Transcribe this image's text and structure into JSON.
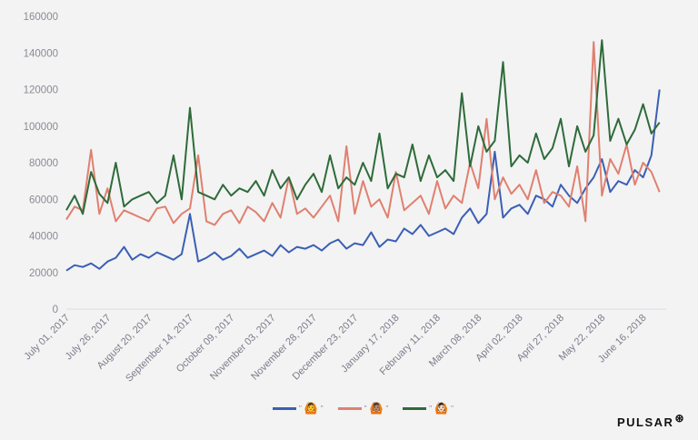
{
  "chart_data": {
    "type": "line",
    "title": "",
    "xlabel": "",
    "ylabel": "",
    "ylim": [
      0,
      160000
    ],
    "yticks": [
      0,
      20000,
      40000,
      60000,
      80000,
      100000,
      120000,
      140000,
      160000
    ],
    "ytick_labels": [
      "0",
      "20000",
      "40000",
      "60000",
      "80000",
      "100000",
      "120000",
      "140000",
      "160000"
    ],
    "xtick_labels": [
      "July 01, 2017",
      "July 26, 2017",
      "August 20, 2017",
      "September 14, 2017",
      "October 09, 2017",
      "November 03, 2017",
      "November 28, 2017",
      "December 23, 2017",
      "January 17, 2018",
      "February 11, 2018",
      "March 08, 2018",
      "April 02, 2018",
      "April 27, 2018",
      "May 22, 2018",
      "June 16, 2018"
    ],
    "xtick_days": [
      0,
      25,
      50,
      75,
      100,
      125,
      150,
      175,
      200,
      225,
      250,
      275,
      300,
      325,
      350
    ],
    "x_day_range": [
      0,
      364
    ],
    "x_step_days": 5,
    "grid": false,
    "legend_position": "bottom-center",
    "series": [
      {
        "name": "\"🙆\"",
        "color": "#3b5fb5",
        "values": [
          21000,
          24000,
          23000,
          25000,
          22000,
          26000,
          28000,
          34000,
          27000,
          30000,
          28000,
          31000,
          29000,
          27000,
          30000,
          52000,
          26000,
          28000,
          31000,
          27000,
          29000,
          33000,
          28000,
          30000,
          32000,
          29000,
          35000,
          31000,
          34000,
          33000,
          35000,
          32000,
          36000,
          38000,
          33000,
          36000,
          35000,
          42000,
          34000,
          38000,
          37000,
          44000,
          41000,
          46000,
          40000,
          42000,
          44000,
          41000,
          50000,
          55000,
          47000,
          52000,
          86000,
          50000,
          55000,
          57000,
          52000,
          62000,
          60000,
          56000,
          68000,
          62000,
          58000,
          66000,
          72000,
          82000,
          64000,
          70000,
          68000,
          76000,
          72000,
          84000,
          120000
        ]
      },
      {
        "name": "\"🙆🏽\"",
        "color": "#e08070",
        "values": [
          49000,
          56000,
          54000,
          87000,
          52000,
          66000,
          48000,
          54000,
          52000,
          50000,
          48000,
          55000,
          56000,
          47000,
          52000,
          55000,
          84000,
          48000,
          46000,
          52000,
          54000,
          47000,
          56000,
          53000,
          48000,
          58000,
          50000,
          72000,
          52000,
          55000,
          50000,
          56000,
          62000,
          48000,
          89000,
          52000,
          70000,
          56000,
          60000,
          50000,
          75000,
          54000,
          58000,
          62000,
          52000,
          70000,
          55000,
          62000,
          58000,
          80000,
          66000,
          104000,
          60000,
          72000,
          63000,
          68000,
          60000,
          76000,
          58000,
          64000,
          62000,
          56000,
          78000,
          48000,
          146000,
          62000,
          82000,
          74000,
          90000,
          68000,
          80000,
          75000,
          64000
        ]
      },
      {
        "name": "\"🙆🏻\"",
        "color": "#2e6b3a",
        "values": [
          54000,
          62000,
          52000,
          75000,
          63000,
          58000,
          80000,
          56000,
          60000,
          62000,
          64000,
          58000,
          62000,
          84000,
          60000,
          110000,
          64000,
          62000,
          60000,
          68000,
          62000,
          66000,
          64000,
          70000,
          62000,
          76000,
          66000,
          72000,
          60000,
          68000,
          74000,
          64000,
          84000,
          66000,
          72000,
          68000,
          80000,
          70000,
          96000,
          66000,
          74000,
          72000,
          90000,
          70000,
          84000,
          72000,
          76000,
          70000,
          118000,
          78000,
          100000,
          86000,
          92000,
          135000,
          78000,
          84000,
          80000,
          96000,
          82000,
          88000,
          104000,
          78000,
          100000,
          86000,
          95000,
          147000,
          92000,
          104000,
          90000,
          98000,
          112000,
          96000,
          102000
        ]
      }
    ]
  },
  "legend": {
    "items": [
      {
        "quote_open": "\"",
        "emoji": "🙆",
        "quote_close": "\""
      },
      {
        "quote_open": "\"",
        "emoji": "🙆🏽",
        "quote_close": "\""
      },
      {
        "quote_open": "\"",
        "emoji": "🙆🏻",
        "quote_close": "\""
      }
    ]
  },
  "brand": {
    "name": "PULSAR",
    "icon": "asterisk-circle-icon"
  }
}
